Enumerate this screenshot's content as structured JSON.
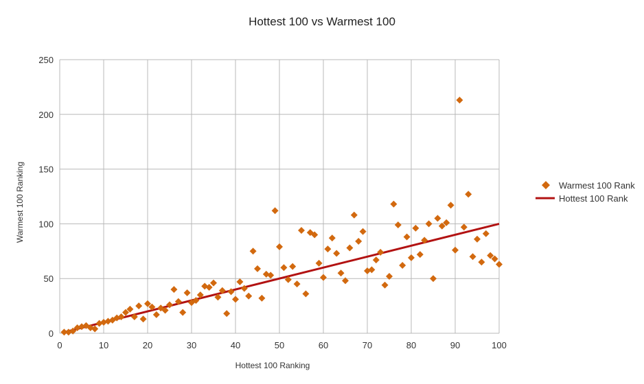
{
  "chart_data": {
    "type": "scatter",
    "title": "Hottest 100 vs Warmest 100",
    "xlabel": "Hottest 100 Ranking",
    "ylabel": "Warmest 100 Ranking",
    "xlim": [
      0,
      100
    ],
    "ylim": [
      0,
      250
    ],
    "xticks": [
      "0",
      "10",
      "20",
      "30",
      "40",
      "50",
      "60",
      "70",
      "80",
      "90",
      "100"
    ],
    "yticks": [
      "0",
      "50",
      "100",
      "150",
      "200",
      "250"
    ],
    "grid": true,
    "legend_position": "right",
    "series": [
      {
        "name": "Warmest 100 Rank",
        "kind": "scatter",
        "marker": "diamond",
        "color": "#d2690f",
        "points": [
          [
            1,
            1
          ],
          [
            2,
            1
          ],
          [
            3,
            2
          ],
          [
            4,
            5
          ],
          [
            5,
            6
          ],
          [
            6,
            7
          ],
          [
            7,
            5
          ],
          [
            8,
            4
          ],
          [
            9,
            9
          ],
          [
            10,
            10
          ],
          [
            11,
            11
          ],
          [
            12,
            12
          ],
          [
            13,
            14
          ],
          [
            14,
            15
          ],
          [
            15,
            19
          ],
          [
            16,
            22
          ],
          [
            17,
            15
          ],
          [
            18,
            25
          ],
          [
            19,
            13
          ],
          [
            20,
            27
          ],
          [
            21,
            24
          ],
          [
            22,
            17
          ],
          [
            23,
            23
          ],
          [
            24,
            21
          ],
          [
            25,
            26
          ],
          [
            26,
            40
          ],
          [
            27,
            29
          ],
          [
            28,
            19
          ],
          [
            29,
            37
          ],
          [
            30,
            28
          ],
          [
            31,
            30
          ],
          [
            32,
            35
          ],
          [
            33,
            43
          ],
          [
            34,
            42
          ],
          [
            35,
            46
          ],
          [
            36,
            33
          ],
          [
            37,
            39
          ],
          [
            38,
            18
          ],
          [
            39,
            38
          ],
          [
            40,
            31
          ],
          [
            41,
            47
          ],
          [
            42,
            41
          ],
          [
            43,
            34
          ],
          [
            44,
            75
          ],
          [
            45,
            59
          ],
          [
            46,
            32
          ],
          [
            47,
            54
          ],
          [
            48,
            53
          ],
          [
            49,
            112
          ],
          [
            50,
            79
          ],
          [
            51,
            60
          ],
          [
            52,
            49
          ],
          [
            53,
            61
          ],
          [
            54,
            45
          ],
          [
            55,
            94
          ],
          [
            56,
            36
          ],
          [
            57,
            92
          ],
          [
            58,
            90
          ],
          [
            59,
            64
          ],
          [
            60,
            51
          ],
          [
            61,
            77
          ],
          [
            62,
            87
          ],
          [
            63,
            73
          ],
          [
            64,
            55
          ],
          [
            65,
            48
          ],
          [
            66,
            78
          ],
          [
            67,
            108
          ],
          [
            68,
            84
          ],
          [
            69,
            93
          ],
          [
            70,
            57
          ],
          [
            71,
            58
          ],
          [
            72,
            67
          ],
          [
            73,
            74
          ],
          [
            74,
            44
          ],
          [
            75,
            52
          ],
          [
            76,
            118
          ],
          [
            77,
            99
          ],
          [
            78,
            62
          ],
          [
            79,
            88
          ],
          [
            80,
            69
          ],
          [
            81,
            96
          ],
          [
            82,
            72
          ],
          [
            83,
            85
          ],
          [
            84,
            100
          ],
          [
            85,
            50
          ],
          [
            86,
            105
          ],
          [
            87,
            98
          ],
          [
            88,
            101
          ],
          [
            89,
            117
          ],
          [
            90,
            76
          ],
          [
            91,
            213
          ],
          [
            92,
            97
          ],
          [
            93,
            127
          ],
          [
            94,
            70
          ],
          [
            95,
            86
          ],
          [
            96,
            65
          ],
          [
            97,
            91
          ],
          [
            98,
            71
          ],
          [
            99,
            68
          ],
          [
            100,
            63
          ]
        ]
      },
      {
        "name": "Hottest 100 Rank",
        "kind": "line",
        "color": "#b21212",
        "points": [
          [
            1,
            1
          ],
          [
            100,
            100
          ]
        ]
      }
    ]
  }
}
